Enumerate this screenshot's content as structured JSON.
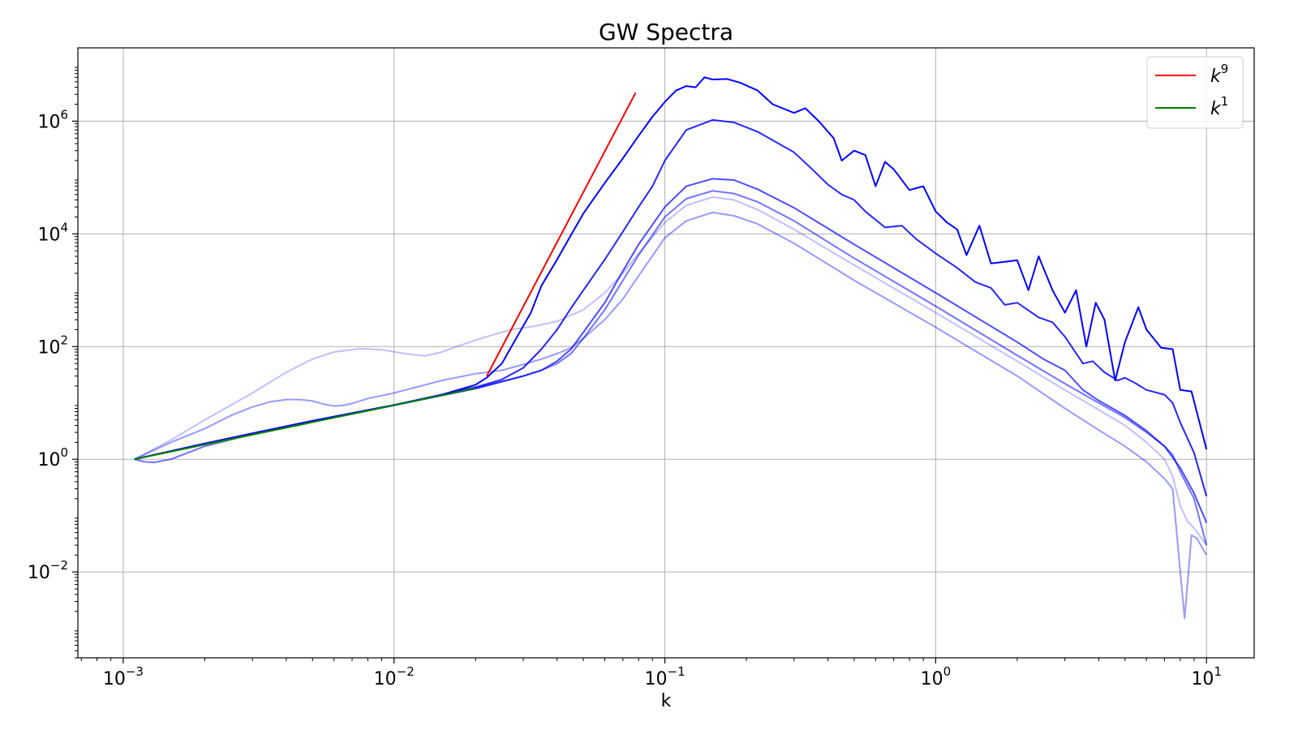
{
  "chart_data": {
    "type": "line",
    "title": "GW Spectra",
    "xlabel": "k",
    "ylabel": "",
    "xscale": "log",
    "yscale": "log",
    "xlim": [
      0.00068,
      15
    ],
    "ylim": [
      0.0003,
      20000000
    ],
    "grid": true,
    "legend_position": "top-right",
    "xticks": [
      {
        "value": 0.001,
        "base": "10",
        "exp": "−3"
      },
      {
        "value": 0.01,
        "base": "10",
        "exp": "−2"
      },
      {
        "value": 0.1,
        "base": "10",
        "exp": "−1"
      },
      {
        "value": 1,
        "base": "10",
        "exp": "0"
      },
      {
        "value": 10,
        "base": "10",
        "exp": "1"
      }
    ],
    "yticks": [
      {
        "value": 0.01,
        "base": "10",
        "exp": "−2"
      },
      {
        "value": 1,
        "base": "10",
        "exp": "0"
      },
      {
        "value": 100,
        "base": "10",
        "exp": "2"
      },
      {
        "value": 10000,
        "base": "10",
        "exp": "4"
      },
      {
        "value": 1000000,
        "base": "10",
        "exp": "6"
      }
    ],
    "legend": [
      {
        "base": "k",
        "exp": "9",
        "color": "#ff0000"
      },
      {
        "base": "k",
        "exp": "1",
        "color": "#008000"
      }
    ],
    "series": [
      {
        "color": "#0000ff",
        "opacity": 0.25,
        "points": [
          [
            0.0011,
            1
          ],
          [
            0.0015,
            2.2
          ],
          [
            0.002,
            5
          ],
          [
            0.003,
            15
          ],
          [
            0.004,
            35
          ],
          [
            0.005,
            60
          ],
          [
            0.006,
            80
          ],
          [
            0.0075,
            92
          ],
          [
            0.009,
            88
          ],
          [
            0.011,
            75
          ],
          [
            0.013,
            68
          ],
          [
            0.015,
            80
          ],
          [
            0.018,
            110
          ],
          [
            0.022,
            150
          ],
          [
            0.027,
            200
          ],
          [
            0.033,
            230
          ],
          [
            0.04,
            280
          ],
          [
            0.05,
            450
          ],
          [
            0.06,
            900
          ],
          [
            0.07,
            2000
          ],
          [
            0.08,
            4500
          ],
          [
            0.1,
            16000
          ],
          [
            0.12,
            32000
          ],
          [
            0.15,
            45000
          ],
          [
            0.18,
            40000
          ],
          [
            0.22,
            27000
          ],
          [
            0.3,
            12000
          ],
          [
            0.5,
            2800
          ],
          [
            1,
            400
          ],
          [
            2,
            55
          ],
          [
            3,
            17
          ],
          [
            4,
            7.5
          ],
          [
            5,
            4
          ],
          [
            6,
            2
          ],
          [
            7,
            1
          ],
          [
            7.5,
            0.5
          ],
          [
            8,
            0.15
          ],
          [
            8.5,
            0.08
          ],
          [
            9,
            0.06
          ],
          [
            10,
            0.03
          ]
        ]
      },
      {
        "color": "#0000ff",
        "opacity": 0.4,
        "points": [
          [
            0.0011,
            1
          ],
          [
            0.0015,
            2
          ],
          [
            0.002,
            3.5
          ],
          [
            0.0025,
            6
          ],
          [
            0.003,
            8.5
          ],
          [
            0.0035,
            10.5
          ],
          [
            0.004,
            11.5
          ],
          [
            0.0045,
            11.5
          ],
          [
            0.005,
            10.8
          ],
          [
            0.0055,
            9.5
          ],
          [
            0.006,
            8.8
          ],
          [
            0.0065,
            9
          ],
          [
            0.007,
            9.8
          ],
          [
            0.008,
            12
          ],
          [
            0.01,
            15
          ],
          [
            0.015,
            25
          ],
          [
            0.02,
            33
          ],
          [
            0.025,
            38
          ],
          [
            0.03,
            48
          ],
          [
            0.035,
            60
          ],
          [
            0.04,
            75
          ],
          [
            0.045,
            95
          ],
          [
            0.05,
            140
          ],
          [
            0.06,
            300
          ],
          [
            0.07,
            700
          ],
          [
            0.08,
            1800
          ],
          [
            0.1,
            8500
          ],
          [
            0.12,
            17000
          ],
          [
            0.15,
            24000
          ],
          [
            0.18,
            21000
          ],
          [
            0.22,
            15000
          ],
          [
            0.3,
            6800
          ],
          [
            0.5,
            1500
          ],
          [
            1,
            220
          ],
          [
            2,
            30
          ],
          [
            3,
            8
          ],
          [
            4,
            3.3
          ],
          [
            5,
            1.7
          ],
          [
            6,
            0.9
          ],
          [
            7,
            0.45
          ],
          [
            7.5,
            0.3
          ],
          [
            8,
            0.01
          ],
          [
            8.3,
            0.0015
          ],
          [
            8.8,
            0.045
          ],
          [
            9.2,
            0.04
          ],
          [
            10,
            0.02
          ]
        ]
      },
      {
        "color": "#0000ff",
        "opacity": 0.55,
        "points": [
          [
            0.0011,
            1
          ],
          [
            0.0012,
            0.9
          ],
          [
            0.0013,
            0.88
          ],
          [
            0.0015,
            1
          ],
          [
            0.002,
            1.7
          ],
          [
            0.003,
            2.8
          ],
          [
            0.005,
            4.6
          ],
          [
            0.01,
            9
          ],
          [
            0.02,
            18
          ],
          [
            0.03,
            30
          ],
          [
            0.035,
            38
          ],
          [
            0.04,
            50
          ],
          [
            0.045,
            75
          ],
          [
            0.05,
            140
          ],
          [
            0.06,
            450
          ],
          [
            0.07,
            1500
          ],
          [
            0.08,
            4200
          ],
          [
            0.1,
            20000
          ],
          [
            0.12,
            42000
          ],
          [
            0.15,
            58000
          ],
          [
            0.18,
            52000
          ],
          [
            0.22,
            37000
          ],
          [
            0.3,
            17000
          ],
          [
            0.5,
            3700
          ],
          [
            1,
            520
          ],
          [
            2,
            70
          ],
          [
            3,
            22
          ],
          [
            4,
            10
          ],
          [
            5,
            5.5
          ],
          [
            6,
            3
          ],
          [
            7,
            1.7
          ],
          [
            7.5,
            1.2
          ],
          [
            8,
            0.6
          ],
          [
            9,
            0.2
          ],
          [
            10,
            0.03
          ]
        ]
      },
      {
        "color": "#0000ff",
        "opacity": 0.7,
        "points": [
          [
            0.0011,
            1
          ],
          [
            0.002,
            1.9
          ],
          [
            0.003,
            2.9
          ],
          [
            0.005,
            4.8
          ],
          [
            0.01,
            9.2
          ],
          [
            0.02,
            18
          ],
          [
            0.03,
            30
          ],
          [
            0.035,
            38
          ],
          [
            0.04,
            55
          ],
          [
            0.045,
            90
          ],
          [
            0.05,
            180
          ],
          [
            0.06,
            600
          ],
          [
            0.07,
            2200
          ],
          [
            0.08,
            6500
          ],
          [
            0.1,
            30000
          ],
          [
            0.12,
            70000
          ],
          [
            0.15,
            95000
          ],
          [
            0.18,
            90000
          ],
          [
            0.22,
            62000
          ],
          [
            0.3,
            29000
          ],
          [
            0.5,
            6500
          ],
          [
            1,
            900
          ],
          [
            2,
            120
          ],
          [
            2.5,
            60
          ],
          [
            3,
            38
          ],
          [
            3.5,
            17
          ],
          [
            4,
            11
          ],
          [
            5,
            6
          ],
          [
            6,
            3.2
          ],
          [
            7,
            1.7
          ],
          [
            8,
            0.7
          ],
          [
            9,
            0.25
          ],
          [
            10,
            0.075
          ]
        ]
      },
      {
        "color": "#0000ff",
        "opacity": 0.85,
        "points": [
          [
            0.0011,
            1
          ],
          [
            0.002,
            1.9
          ],
          [
            0.005,
            4.8
          ],
          [
            0.01,
            9.2
          ],
          [
            0.015,
            14
          ],
          [
            0.02,
            19
          ],
          [
            0.025,
            26
          ],
          [
            0.03,
            42
          ],
          [
            0.035,
            90
          ],
          [
            0.04,
            200
          ],
          [
            0.045,
            480
          ],
          [
            0.05,
            1000
          ],
          [
            0.06,
            3500
          ],
          [
            0.07,
            11000
          ],
          [
            0.08,
            30000
          ],
          [
            0.09,
            70000
          ],
          [
            0.1,
            200000
          ],
          [
            0.12,
            700000
          ],
          [
            0.15,
            1050000
          ],
          [
            0.18,
            950000
          ],
          [
            0.22,
            650000
          ],
          [
            0.3,
            280000
          ],
          [
            0.35,
            140000
          ],
          [
            0.4,
            75000
          ],
          [
            0.45,
            50000
          ],
          [
            0.5,
            40000
          ],
          [
            0.55,
            25000
          ],
          [
            0.65,
            13000
          ],
          [
            0.75,
            14000
          ],
          [
            0.85,
            8000
          ],
          [
            1,
            4500
          ],
          [
            1.2,
            2500
          ],
          [
            1.4,
            1400
          ],
          [
            1.6,
            1100
          ],
          [
            1.8,
            550
          ],
          [
            2,
            600
          ],
          [
            2.4,
            330
          ],
          [
            2.7,
            270
          ],
          [
            3,
            150
          ],
          [
            3.5,
            50
          ],
          [
            3.8,
            55
          ],
          [
            4.2,
            35
          ],
          [
            4.7,
            25
          ],
          [
            5,
            28
          ],
          [
            5.5,
            22
          ],
          [
            6,
            17
          ],
          [
            7,
            14
          ],
          [
            7.5,
            10
          ],
          [
            8,
            4.5
          ],
          [
            9,
            1.3
          ],
          [
            10,
            0.22
          ]
        ]
      },
      {
        "color": "#0000ff",
        "opacity": 1.0,
        "points": [
          [
            0.0011,
            1
          ],
          [
            0.002,
            1.9
          ],
          [
            0.005,
            4.8
          ],
          [
            0.01,
            9.2
          ],
          [
            0.015,
            14
          ],
          [
            0.02,
            21
          ],
          [
            0.022,
            28
          ],
          [
            0.025,
            50
          ],
          [
            0.028,
            130
          ],
          [
            0.032,
            400
          ],
          [
            0.035,
            1200
          ],
          [
            0.04,
            3500
          ],
          [
            0.045,
            9500
          ],
          [
            0.05,
            23000
          ],
          [
            0.06,
            80000
          ],
          [
            0.07,
            220000
          ],
          [
            0.08,
            550000
          ],
          [
            0.09,
            1200000
          ],
          [
            0.1,
            2200000
          ],
          [
            0.11,
            3500000
          ],
          [
            0.12,
            4200000
          ],
          [
            0.13,
            4000000
          ],
          [
            0.14,
            6000000
          ],
          [
            0.15,
            5500000
          ],
          [
            0.17,
            5600000
          ],
          [
            0.19,
            4800000
          ],
          [
            0.22,
            3500000
          ],
          [
            0.25,
            2000000
          ],
          [
            0.3,
            1400000
          ],
          [
            0.33,
            1700000
          ],
          [
            0.37,
            1000000
          ],
          [
            0.42,
            500000
          ],
          [
            0.45,
            200000
          ],
          [
            0.5,
            300000
          ],
          [
            0.55,
            250000
          ],
          [
            0.6,
            70000
          ],
          [
            0.65,
            190000
          ],
          [
            0.7,
            140000
          ],
          [
            0.8,
            60000
          ],
          [
            0.9,
            70000
          ],
          [
            1,
            25000
          ],
          [
            1.1,
            16000
          ],
          [
            1.2,
            12000
          ],
          [
            1.3,
            4200
          ],
          [
            1.45,
            14000
          ],
          [
            1.6,
            3000
          ],
          [
            1.8,
            3200
          ],
          [
            2,
            3400
          ],
          [
            2.2,
            1000
          ],
          [
            2.4,
            4000
          ],
          [
            2.7,
            1000
          ],
          [
            3,
            400
          ],
          [
            3.3,
            1000
          ],
          [
            3.6,
            100
          ],
          [
            3.9,
            600
          ],
          [
            4.2,
            300
          ],
          [
            4.6,
            25
          ],
          [
            5,
            120
          ],
          [
            5.6,
            500
          ],
          [
            6,
            200
          ],
          [
            6.8,
            95
          ],
          [
            7.5,
            90
          ],
          [
            8,
            17
          ],
          [
            8.8,
            16
          ],
          [
            10,
            1.5
          ]
        ]
      }
    ],
    "reference_lines": [
      {
        "name": "k^9",
        "color": "#ff0000",
        "points": [
          [
            0.022,
            30
          ],
          [
            0.078,
            3200000
          ]
        ]
      },
      {
        "name": "k^1",
        "color": "#008000",
        "points": [
          [
            0.0011,
            1
          ],
          [
            0.02,
            18.2
          ]
        ]
      }
    ]
  }
}
